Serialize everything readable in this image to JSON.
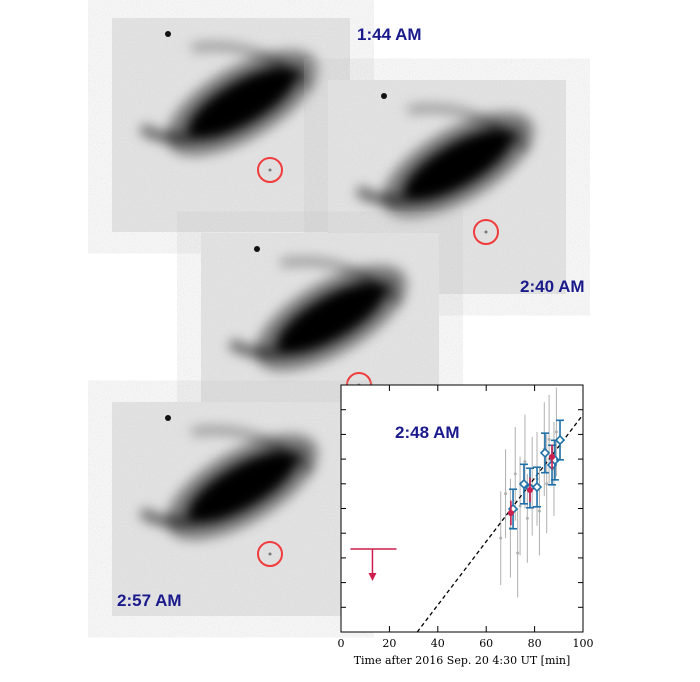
{
  "panels": [
    {
      "label": "1:44 AM"
    },
    {
      "label": "2:40 AM"
    },
    {
      "label": "2:48 AM"
    },
    {
      "label": "2:57 AM"
    }
  ],
  "chart_data": {
    "type": "scatter",
    "xlabel": "Time after 2016 Sep. 20 4:30 UT [min]",
    "xlim": [
      0,
      100
    ],
    "xticks": [
      0,
      20,
      40,
      60,
      80,
      100
    ],
    "ylim": [
      0,
      10
    ],
    "yticks": [
      1,
      2,
      3,
      4,
      5,
      6,
      7,
      8,
      9
    ],
    "series": [
      {
        "marker": "dot",
        "color": "#b0b0b0",
        "x": [
          66,
          68,
          70,
          72,
          73,
          74,
          76,
          77,
          79,
          81,
          82,
          84,
          85,
          86,
          88,
          89
        ],
        "values": [
          3.8,
          5.6,
          4.2,
          6.4,
          3.2,
          5.1,
          6.9,
          4.6,
          5.9,
          6.2,
          4.9,
          7.4,
          6.0,
          7.8,
          6.6,
          8.1
        ],
        "yerr": [
          1.9,
          1.8,
          2.0,
          1.9,
          1.8,
          2.0,
          1.9,
          1.8,
          2.0,
          1.9,
          1.8,
          1.9,
          2.0,
          1.8,
          1.9,
          1.8
        ]
      },
      {
        "marker": "line",
        "color": "#000000",
        "x": [
          31.5,
          100
        ],
        "values": [
          0,
          8.8
        ]
      },
      {
        "marker": "diamond",
        "color": "#1f6fa8",
        "x": [
          71.1,
          75.6,
          78.1,
          81.0,
          84.3,
          87.2,
          88.4,
          90.5
        ],
        "values": [
          4.98,
          5.99,
          5.83,
          5.87,
          7.25,
          6.76,
          6.96,
          7.77
        ],
        "yerr": [
          0.8,
          0.8,
          0.8,
          0.8,
          0.8,
          0.8,
          0.8,
          0.8
        ]
      },
      {
        "marker": "point",
        "color": "#cc1f4e",
        "x": [
          70.2,
          78.1,
          87.2
        ],
        "values": [
          4.82,
          5.75,
          7.09
        ],
        "yerr": [
          0.5,
          0.5,
          0.5
        ]
      }
    ],
    "upper_limit": {
      "x": 13,
      "value": 3.36,
      "color": "#cc1f4e"
    }
  }
}
